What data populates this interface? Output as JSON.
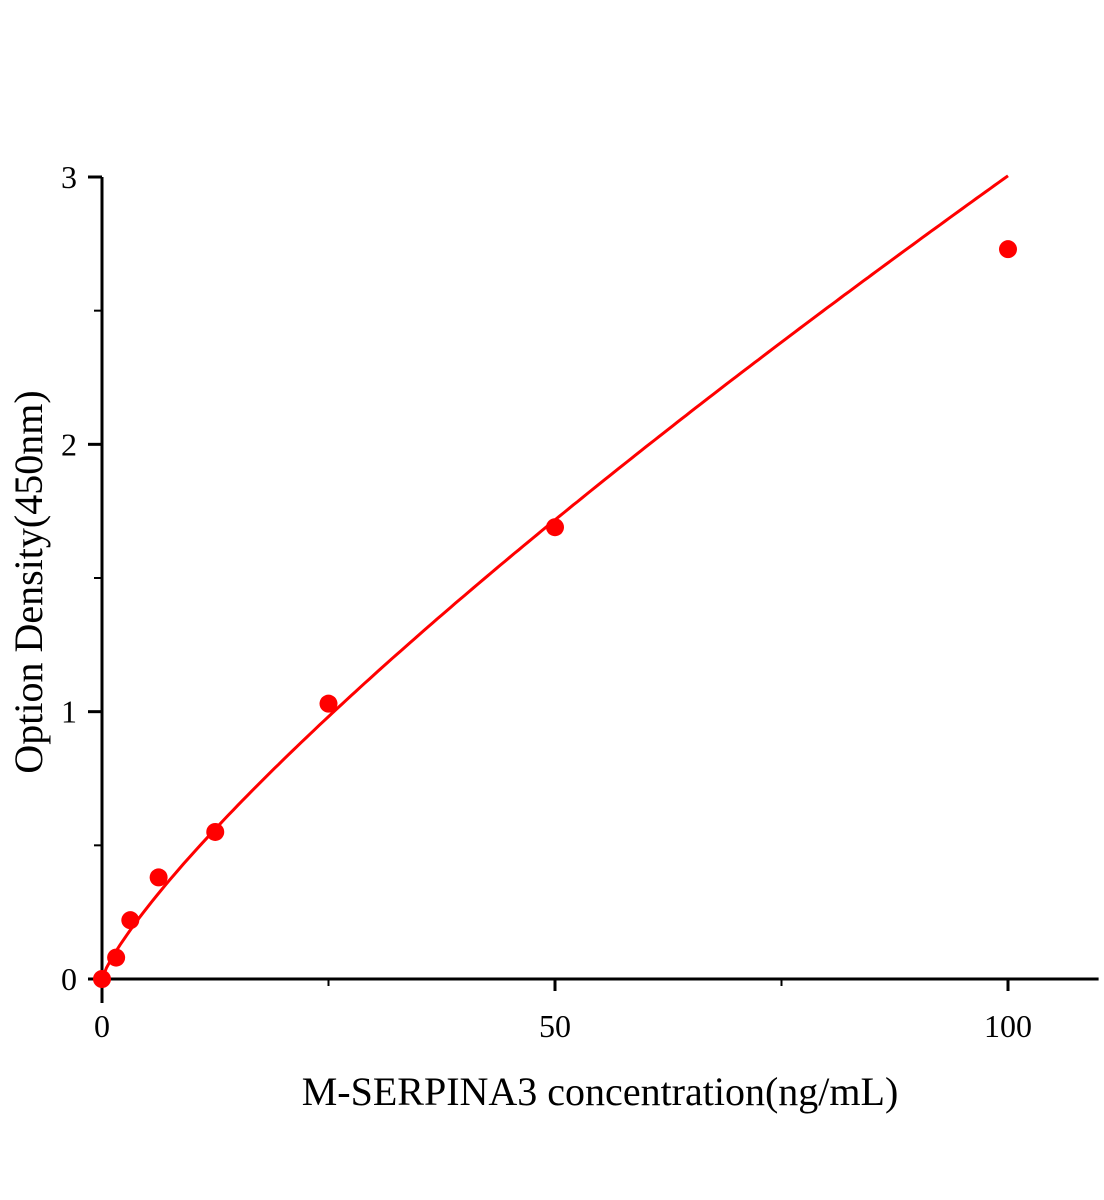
{
  "chart_data": {
    "type": "scatter",
    "title": "",
    "xlabel": "M-SERPINA3 concentration(ng/mL)",
    "ylabel": "Option Density(450nm)",
    "xlim": [
      0,
      110
    ],
    "ylim": [
      0,
      3
    ],
    "x_ticks": [
      0,
      50,
      100
    ],
    "x_tick_labels": [
      "0",
      "50",
      "100"
    ],
    "x_minor_ticks": [
      25,
      75
    ],
    "y_ticks": [
      0,
      1,
      2,
      3
    ],
    "y_tick_labels": [
      "0",
      "1",
      "2",
      "3"
    ],
    "y_minor_ticks": [
      0.5,
      1.5,
      2.5
    ],
    "grid": false,
    "color": "#ff0000",
    "series": [
      {
        "x": [
          0,
          1.56,
          3.125,
          6.25,
          12.5,
          25,
          50,
          100
        ],
        "y": [
          0,
          0.08,
          0.22,
          0.38,
          0.55,
          1.03,
          1.69,
          2.73
        ],
        "fit": "curve"
      }
    ]
  }
}
